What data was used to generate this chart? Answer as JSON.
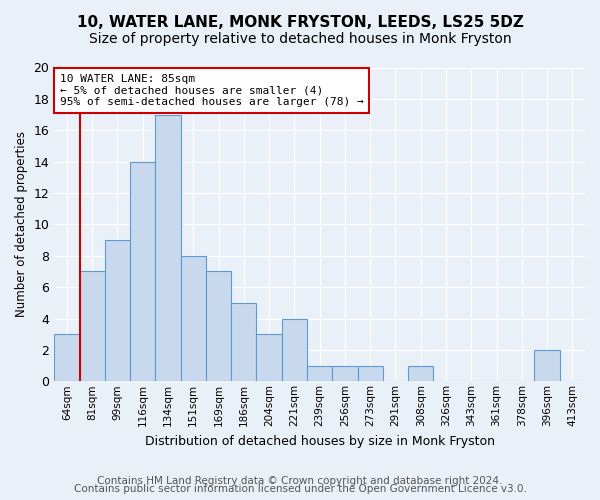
{
  "title": "10, WATER LANE, MONK FRYSTON, LEEDS, LS25 5DZ",
  "subtitle": "Size of property relative to detached houses in Monk Fryston",
  "xlabel": "Distribution of detached houses by size in Monk Fryston",
  "ylabel": "Number of detached properties",
  "bin_labels": [
    "64sqm",
    "81sqm",
    "99sqm",
    "116sqm",
    "134sqm",
    "151sqm",
    "169sqm",
    "186sqm",
    "204sqm",
    "221sqm",
    "239sqm",
    "256sqm",
    "273sqm",
    "291sqm",
    "308sqm",
    "326sqm",
    "343sqm",
    "361sqm",
    "378sqm",
    "396sqm",
    "413sqm"
  ],
  "counts": [
    3,
    7,
    9,
    14,
    17,
    8,
    7,
    5,
    3,
    4,
    1,
    1,
    1,
    0,
    1,
    0,
    0,
    0,
    0,
    2,
    0
  ],
  "bar_color": "#c9d9ed",
  "bar_edge_color": "#5b9bd5",
  "ylim": [
    0,
    20
  ],
  "yticks": [
    0,
    2,
    4,
    6,
    8,
    10,
    12,
    14,
    16,
    18,
    20
  ],
  "vline_index": 1,
  "vline_color": "#cc0000",
  "annotation_line1": "10 WATER LANE: 85sqm",
  "annotation_line2": "← 5% of detached houses are smaller (4)",
  "annotation_line3": "95% of semi-detached houses are larger (78) →",
  "annotation_box_color": "#ffffff",
  "annotation_box_edge": "#cc0000",
  "footer_line1": "Contains HM Land Registry data © Crown copyright and database right 2024.",
  "footer_line2": "Contains public sector information licensed under the Open Government Licence v3.0.",
  "bg_color": "#eaf0f8",
  "plot_bg_color": "#eaf0f8",
  "grid_color": "#ffffff",
  "title_fontsize": 11,
  "subtitle_fontsize": 10,
  "footer_fontsize": 7.5
}
